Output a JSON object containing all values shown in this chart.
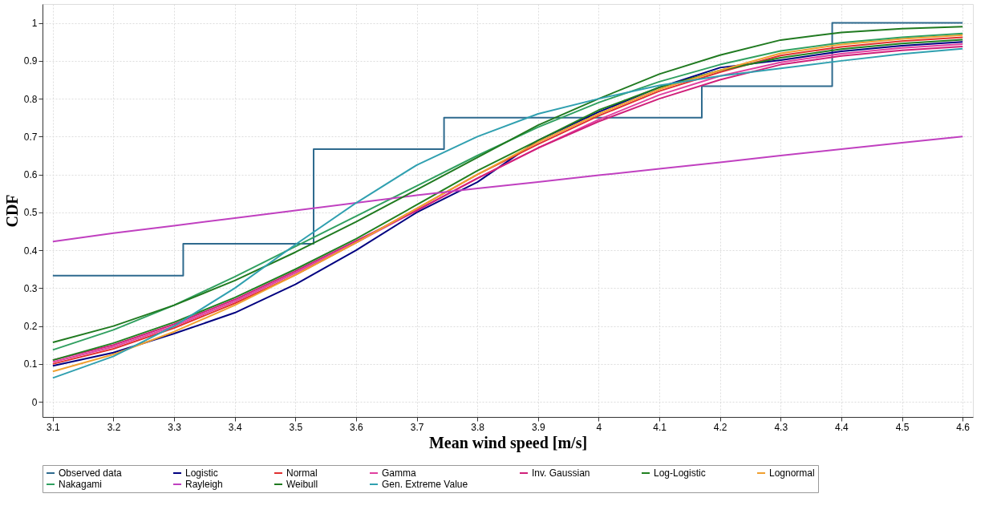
{
  "chart_data": {
    "type": "line",
    "xlabel": "Mean wind speed [m/s]",
    "ylabel": "CDF",
    "x": [
      3.1,
      3.2,
      3.3,
      3.4,
      3.5,
      3.6,
      3.7,
      3.8,
      3.9,
      4.0,
      4.1,
      4.2,
      4.3,
      4.4,
      4.5,
      4.6
    ],
    "xlim": [
      3.083,
      4.617
    ],
    "ylim": [
      -0.04,
      1.05
    ],
    "xticks": [
      3.1,
      3.2,
      3.3,
      3.4,
      3.5,
      3.6,
      3.7,
      3.8,
      3.9,
      4,
      4.1,
      4.2,
      4.3,
      4.4,
      4.5,
      4.6
    ],
    "yticks": [
      0,
      0.1,
      0.2,
      0.3,
      0.4,
      0.5,
      0.6,
      0.7,
      0.8,
      0.9,
      1
    ],
    "grid": true,
    "legend": "bottom",
    "marker": "none",
    "line_style": "solid",
    "series": [
      {
        "name": "Observed data",
        "type": "step",
        "color": "#2e6a8e",
        "x": [
          3.1,
          3.315,
          3.53,
          3.745,
          4.17,
          4.385,
          4.6
        ],
        "values": [
          0.333,
          0.417,
          0.667,
          0.75,
          0.833,
          1,
          1
        ]
      },
      {
        "name": "Logistic",
        "color": "#000080",
        "values": [
          0.095,
          0.13,
          0.18,
          0.235,
          0.31,
          0.4,
          0.5,
          0.58,
          0.69,
          0.765,
          0.83,
          0.882,
          0.902,
          0.925,
          0.94,
          0.95
        ]
      },
      {
        "name": "Normal",
        "color": "#e03030",
        "values": [
          0.1,
          0.14,
          0.195,
          0.26,
          0.335,
          0.42,
          0.51,
          0.6,
          0.68,
          0.755,
          0.82,
          0.87,
          0.914,
          0.937,
          0.952,
          0.962
        ]
      },
      {
        "name": "Gamma",
        "color": "#e040a0",
        "values": [
          0.105,
          0.145,
          0.2,
          0.265,
          0.34,
          0.42,
          0.505,
          0.59,
          0.67,
          0.745,
          0.81,
          0.86,
          0.896,
          0.919,
          0.934,
          0.944
        ]
      },
      {
        "name": "Inv. Gaussian",
        "color": "#d0207a",
        "values": [
          0.11,
          0.15,
          0.205,
          0.27,
          0.345,
          0.425,
          0.505,
          0.59,
          0.67,
          0.74,
          0.8,
          0.85,
          0.89,
          0.913,
          0.928,
          0.938
        ]
      },
      {
        "name": "Log-Logistic",
        "color": "#208020",
        "values": [
          0.11,
          0.155,
          0.21,
          0.275,
          0.35,
          0.43,
          0.52,
          0.61,
          0.69,
          0.77,
          0.83,
          0.875,
          0.908,
          0.931,
          0.946,
          0.956
        ]
      },
      {
        "name": "Lognormal",
        "color": "#f0a030",
        "values": [
          0.08,
          0.125,
          0.185,
          0.255,
          0.335,
          0.42,
          0.51,
          0.6,
          0.685,
          0.76,
          0.825,
          0.875,
          0.92,
          0.943,
          0.958,
          0.968
        ]
      },
      {
        "name": "Nakagami",
        "color": "#30a060",
        "values": [
          0.137,
          0.19,
          0.255,
          0.33,
          0.41,
          0.49,
          0.57,
          0.65,
          0.725,
          0.79,
          0.845,
          0.89,
          0.926,
          0.948,
          0.962,
          0.972
        ]
      },
      {
        "name": "Rayleigh",
        "color": "#c040c0",
        "values": [
          0.423,
          0.445,
          0.465,
          0.485,
          0.505,
          0.525,
          0.545,
          0.563,
          0.58,
          0.598,
          0.615,
          0.632,
          0.65,
          0.667,
          0.684,
          0.7
        ]
      },
      {
        "name": "Weibull",
        "color": "#207a20",
        "values": [
          0.157,
          0.2,
          0.255,
          0.32,
          0.395,
          0.475,
          0.56,
          0.645,
          0.73,
          0.8,
          0.865,
          0.915,
          0.955,
          0.975,
          0.985,
          0.99
        ]
      },
      {
        "name": "Gen. Extreme Value",
        "color": "#30a0b0",
        "values": [
          0.063,
          0.12,
          0.2,
          0.3,
          0.415,
          0.525,
          0.625,
          0.7,
          0.76,
          0.8,
          0.835,
          0.86,
          0.88,
          0.9,
          0.918,
          0.932
        ]
      }
    ]
  }
}
